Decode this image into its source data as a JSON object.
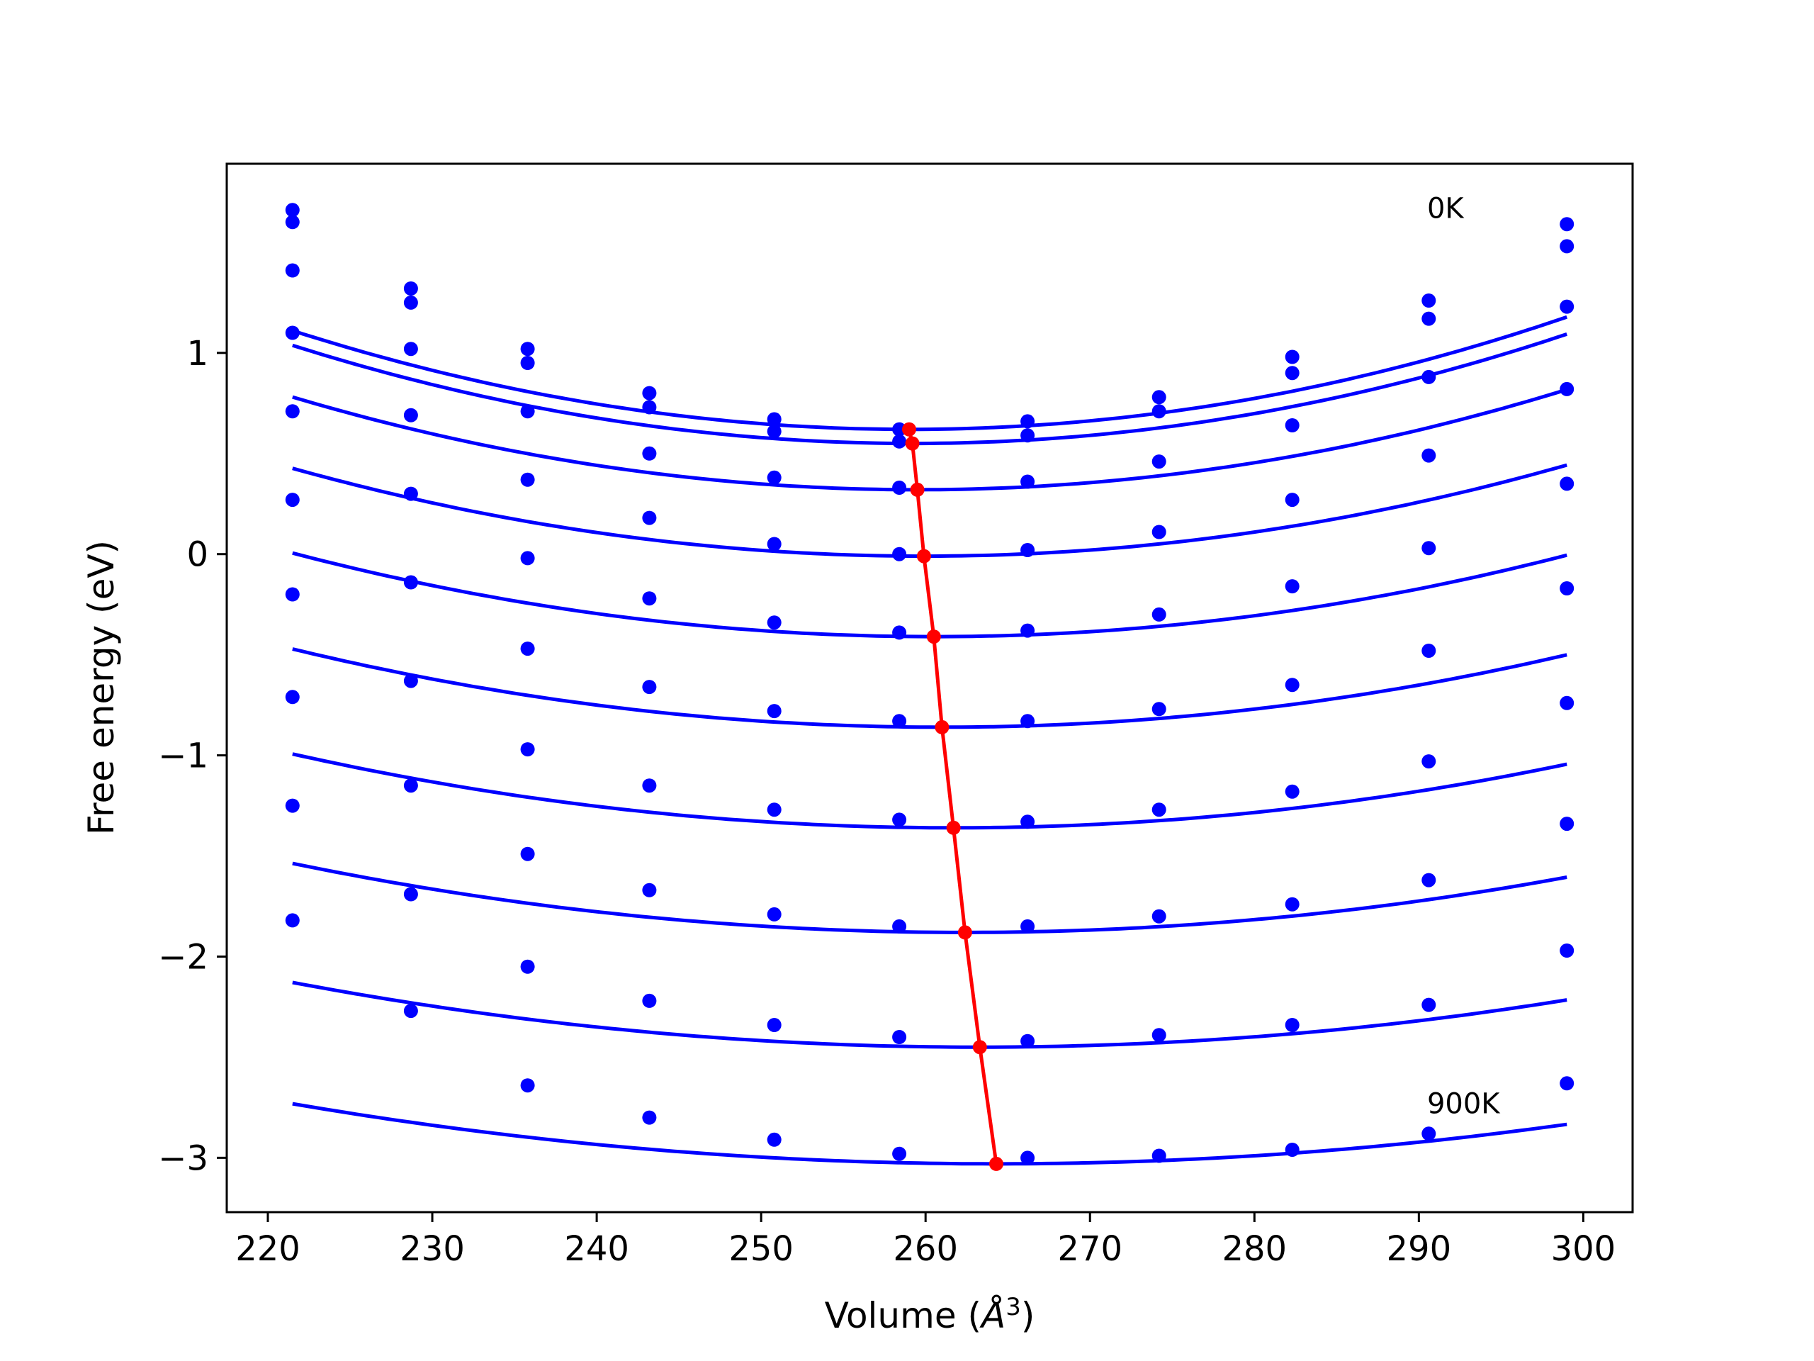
{
  "chart_data": {
    "type": "line",
    "xlabel": "Volume (",
    "xlabel_symbol": "Å",
    "xlabel_exp": "3",
    "xlabel_close": ")",
    "ylabel": "Free energy (eV)",
    "xlim": [
      217.5,
      303
    ],
    "ylim": [
      -3.27,
      1.94
    ],
    "xticks": [
      220,
      230,
      240,
      250,
      260,
      270,
      280,
      290,
      300
    ],
    "yticks": [
      1,
      0,
      -1,
      -2,
      -3
    ],
    "ytick_labels": [
      "1",
      "0",
      "−1",
      "−2",
      "−3"
    ],
    "annotations": [
      {
        "text": "0K",
        "x": 290.5,
        "y": 1.72
      },
      {
        "text": "900K",
        "x": 290.5,
        "y": -2.73
      }
    ],
    "x": [
      221.5,
      228.7,
      235.8,
      243.2,
      250.8,
      258.4,
      266.2,
      274.2,
      282.3,
      290.6,
      299.0
    ],
    "series_color": "#0000ff",
    "minimum_color": "#ff0000",
    "series": [
      {
        "values": [
          1.71,
          1.32,
          1.02,
          0.8,
          0.67,
          0.62,
          0.66,
          0.78,
          0.98,
          1.26,
          1.64
        ],
        "fit": {
          "a": 0.000349,
          "vmin": 259.0,
          "emin": 0.62
        }
      },
      {
        "values": [
          1.65,
          1.25,
          0.95,
          0.73,
          0.61,
          0.56,
          0.59,
          0.71,
          0.9,
          1.17,
          1.53
        ],
        "fit": {
          "a": 0.000343,
          "vmin": 259.2,
          "emin": 0.55
        }
      },
      {
        "values": [
          1.41,
          1.02,
          0.71,
          0.5,
          0.38,
          0.33,
          0.36,
          0.46,
          0.64,
          0.88,
          1.23
        ],
        "fit": {
          "a": 0.000319,
          "vmin": 259.5,
          "emin": 0.32
        }
      },
      {
        "values": [
          1.1,
          0.69,
          0.37,
          0.18,
          0.05,
          0.0,
          0.02,
          0.11,
          0.27,
          0.49,
          0.82
        ],
        "fit": {
          "a": 0.000296,
          "vmin": 259.9,
          "emin": -0.01
        }
      },
      {
        "values": [
          0.71,
          0.3,
          -0.02,
          -0.22,
          -0.34,
          -0.39,
          -0.38,
          -0.3,
          -0.16,
          0.03,
          0.35
        ],
        "fit": {
          "a": 0.000273,
          "vmin": 260.5,
          "emin": -0.41
        }
      },
      {
        "values": [
          0.27,
          -0.14,
          -0.47,
          -0.66,
          -0.78,
          -0.83,
          -0.83,
          -0.77,
          -0.65,
          -0.48,
          -0.17
        ],
        "fit": {
          "a": 0.000249,
          "vmin": 261.0,
          "emin": -0.86
        }
      },
      {
        "values": [
          -0.2,
          -0.63,
          -0.97,
          -1.15,
          -1.27,
          -1.32,
          -1.33,
          -1.27,
          -1.18,
          -1.03,
          -0.74
        ],
        "fit": {
          "a": 0.000227,
          "vmin": 261.7,
          "emin": -1.36
        }
      },
      {
        "values": [
          -0.71,
          -1.15,
          -1.49,
          -1.67,
          -1.79,
          -1.85,
          -1.85,
          -1.8,
          -1.74,
          -1.62,
          -1.34
        ],
        "fit": {
          "a": 0.000205,
          "vmin": 262.4,
          "emin": -1.88
        }
      },
      {
        "values": [
          -1.25,
          -1.69,
          -2.05,
          -2.22,
          -2.34,
          -2.4,
          -2.42,
          -2.39,
          -2.34,
          -2.24,
          -1.97
        ],
        "fit": {
          "a": 0.000184,
          "vmin": 263.3,
          "emin": -2.45
        }
      },
      {
        "values": [
          -1.82,
          -2.27,
          -2.64,
          -2.8,
          -2.91,
          -2.98,
          -3.0,
          -2.99,
          -2.96,
          -2.88,
          -2.63
        ],
        "fit": {
          "a": 0.000163,
          "vmin": 264.3,
          "emin": -3.03
        }
      }
    ],
    "minimum_line": {
      "x": [
        259.0,
        259.2,
        259.5,
        259.9,
        260.5,
        261.0,
        261.7,
        262.4,
        263.3,
        264.3
      ],
      "y": [
        0.62,
        0.55,
        0.32,
        -0.01,
        -0.41,
        -0.86,
        -1.36,
        -1.88,
        -2.45,
        -3.03
      ]
    }
  }
}
